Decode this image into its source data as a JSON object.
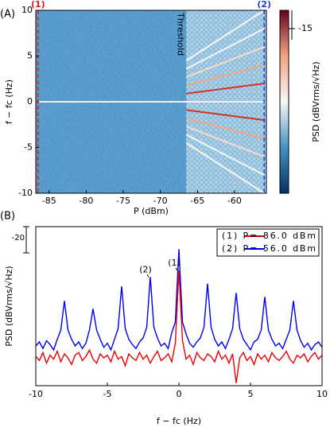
{
  "chart_data": [
    {
      "type": "heatmap",
      "panel_label": "(A)",
      "xlabel": "P (dBm)",
      "ylabel": "f − fc (Hz)",
      "xlim": [
        -86.8,
        -55.7
      ],
      "ylim": [
        -10,
        10
      ],
      "xticks": [
        -85,
        -80,
        -75,
        -70,
        -65,
        -60
      ],
      "yticks": [
        -10,
        -5,
        0,
        5,
        10
      ],
      "markers": [
        {
          "label": "(1)",
          "x": -86.5,
          "color": "#e41a1c"
        },
        {
          "label": "(2)",
          "x": -56,
          "color": "#1f3fe0"
        }
      ],
      "threshold": {
        "label": "Threshold",
        "x": -66.5
      },
      "carrier": 0,
      "sidebands": {
        "x": [
          -66.5,
          -56
        ],
        "lines": [
          [
            0.9,
            2
          ],
          [
            1.8,
            4
          ],
          [
            2.7,
            6
          ],
          [
            3.6,
            8
          ],
          [
            4.5,
            10
          ],
          [
            -0.9,
            -2
          ],
          [
            -1.8,
            -4
          ],
          [
            -2.7,
            -6
          ],
          [
            -3.6,
            -8
          ],
          [
            -4.5,
            -10
          ]
        ],
        "colors": [
          "#d7301f",
          "#f4a582",
          "#fddbc7",
          "#f7f7f7",
          "#f7f7f7",
          "#d7301f",
          "#f4a582",
          "#fddbc7",
          "#f7f7f7",
          "#f7f7f7"
        ]
      },
      "colorbar": {
        "label": "PSD (dBVrms/√Hz)",
        "clim": [
          -60,
          -10
        ],
        "ticks": [
          -15
        ]
      }
    },
    {
      "type": "line",
      "panel_label": "(B)",
      "xlabel": "f − fc (Hz)",
      "ylabel": "PSD (dBVrms/√Hz)",
      "xlim": [
        -10,
        10
      ],
      "ylim": [
        -140,
        -20
      ],
      "xticks": [
        -10,
        -5,
        0,
        5,
        10
      ],
      "scale_bar": {
        "label": "-20"
      },
      "legend": "upper right",
      "peak_labels": [
        {
          "label": "(2)",
          "x": -2,
          "y": -58
        },
        {
          "label": "(1)",
          "x": 0,
          "y": -53
        }
      ],
      "x": [
        -10,
        -9.75,
        -9.5,
        -9.25,
        -9,
        -8.75,
        -8.5,
        -8.25,
        -8,
        -7.75,
        -7.5,
        -7.25,
        -7,
        -6.75,
        -6.5,
        -6.25,
        -6,
        -5.75,
        -5.5,
        -5.25,
        -5,
        -4.75,
        -4.5,
        -4.25,
        -4,
        -3.75,
        -3.5,
        -3.25,
        -3,
        -2.75,
        -2.5,
        -2.25,
        -2,
        -1.75,
        -1.5,
        -1.25,
        -1,
        -0.75,
        -0.5,
        -0.25,
        0,
        0.25,
        0.5,
        0.75,
        1,
        1.25,
        1.5,
        1.75,
        2,
        2.25,
        2.5,
        2.75,
        3,
        3.25,
        3.5,
        3.75,
        4,
        4.25,
        4.5,
        4.75,
        5,
        5.25,
        5.5,
        5.75,
        6,
        6.25,
        6.5,
        6.75,
        7,
        7.25,
        7.5,
        7.75,
        8,
        8.25,
        8.5,
        8.75,
        9,
        9.25,
        9.5,
        9.75,
        10
      ],
      "series": [
        {
          "name": "(2) P=-56.0 dBm",
          "color": "#0000ee",
          "values": [
            -110,
            -107,
            -112,
            -106,
            -109,
            -113,
            -105,
            -98,
            -76,
            -98,
            -105,
            -110,
            -107,
            -112,
            -108,
            -98,
            -82,
            -98,
            -105,
            -111,
            -108,
            -113,
            -105,
            -97,
            -65,
            -97,
            -105,
            -109,
            -112,
            -107,
            -104,
            -96,
            -58,
            -96,
            -104,
            -110,
            -108,
            -112,
            -100,
            -92,
            -37,
            -92,
            -101,
            -108,
            -111,
            -107,
            -104,
            -96,
            -63,
            -96,
            -105,
            -110,
            -107,
            -112,
            -105,
            -97,
            -70,
            -97,
            -105,
            -109,
            -113,
            -107,
            -105,
            -98,
            -73,
            -98,
            -105,
            -110,
            -108,
            -112,
            -105,
            -98,
            -76,
            -98,
            -106,
            -111,
            -108,
            -113,
            -109,
            -107,
            -111
          ]
        },
        {
          "name": "(1) P=-86.0 dBm",
          "color": "#ee0000",
          "values": [
            -118,
            -121,
            -115,
            -123,
            -117,
            -120,
            -114,
            -122,
            -116,
            -119,
            -124,
            -117,
            -115,
            -121,
            -118,
            -113,
            -120,
            -123,
            -116,
            -119,
            -117,
            -122,
            -114,
            -120,
            -118,
            -125,
            -116,
            -119,
            -121,
            -115,
            -120,
            -117,
            -123,
            -118,
            -114,
            -121,
            -119,
            -116,
            -122,
            -108,
            -53,
            -106,
            -120,
            -117,
            -124,
            -115,
            -119,
            -121,
            -116,
            -118,
            -122,
            -114,
            -120,
            -117,
            -123,
            -116,
            -138,
            -119,
            -115,
            -121,
            -118,
            -124,
            -116,
            -120,
            -117,
            -122,
            -115,
            -119,
            -121,
            -118,
            -114,
            -120,
            -123,
            -117,
            -119,
            -116,
            -122,
            -118,
            -115,
            -120,
            -117
          ]
        }
      ]
    }
  ]
}
